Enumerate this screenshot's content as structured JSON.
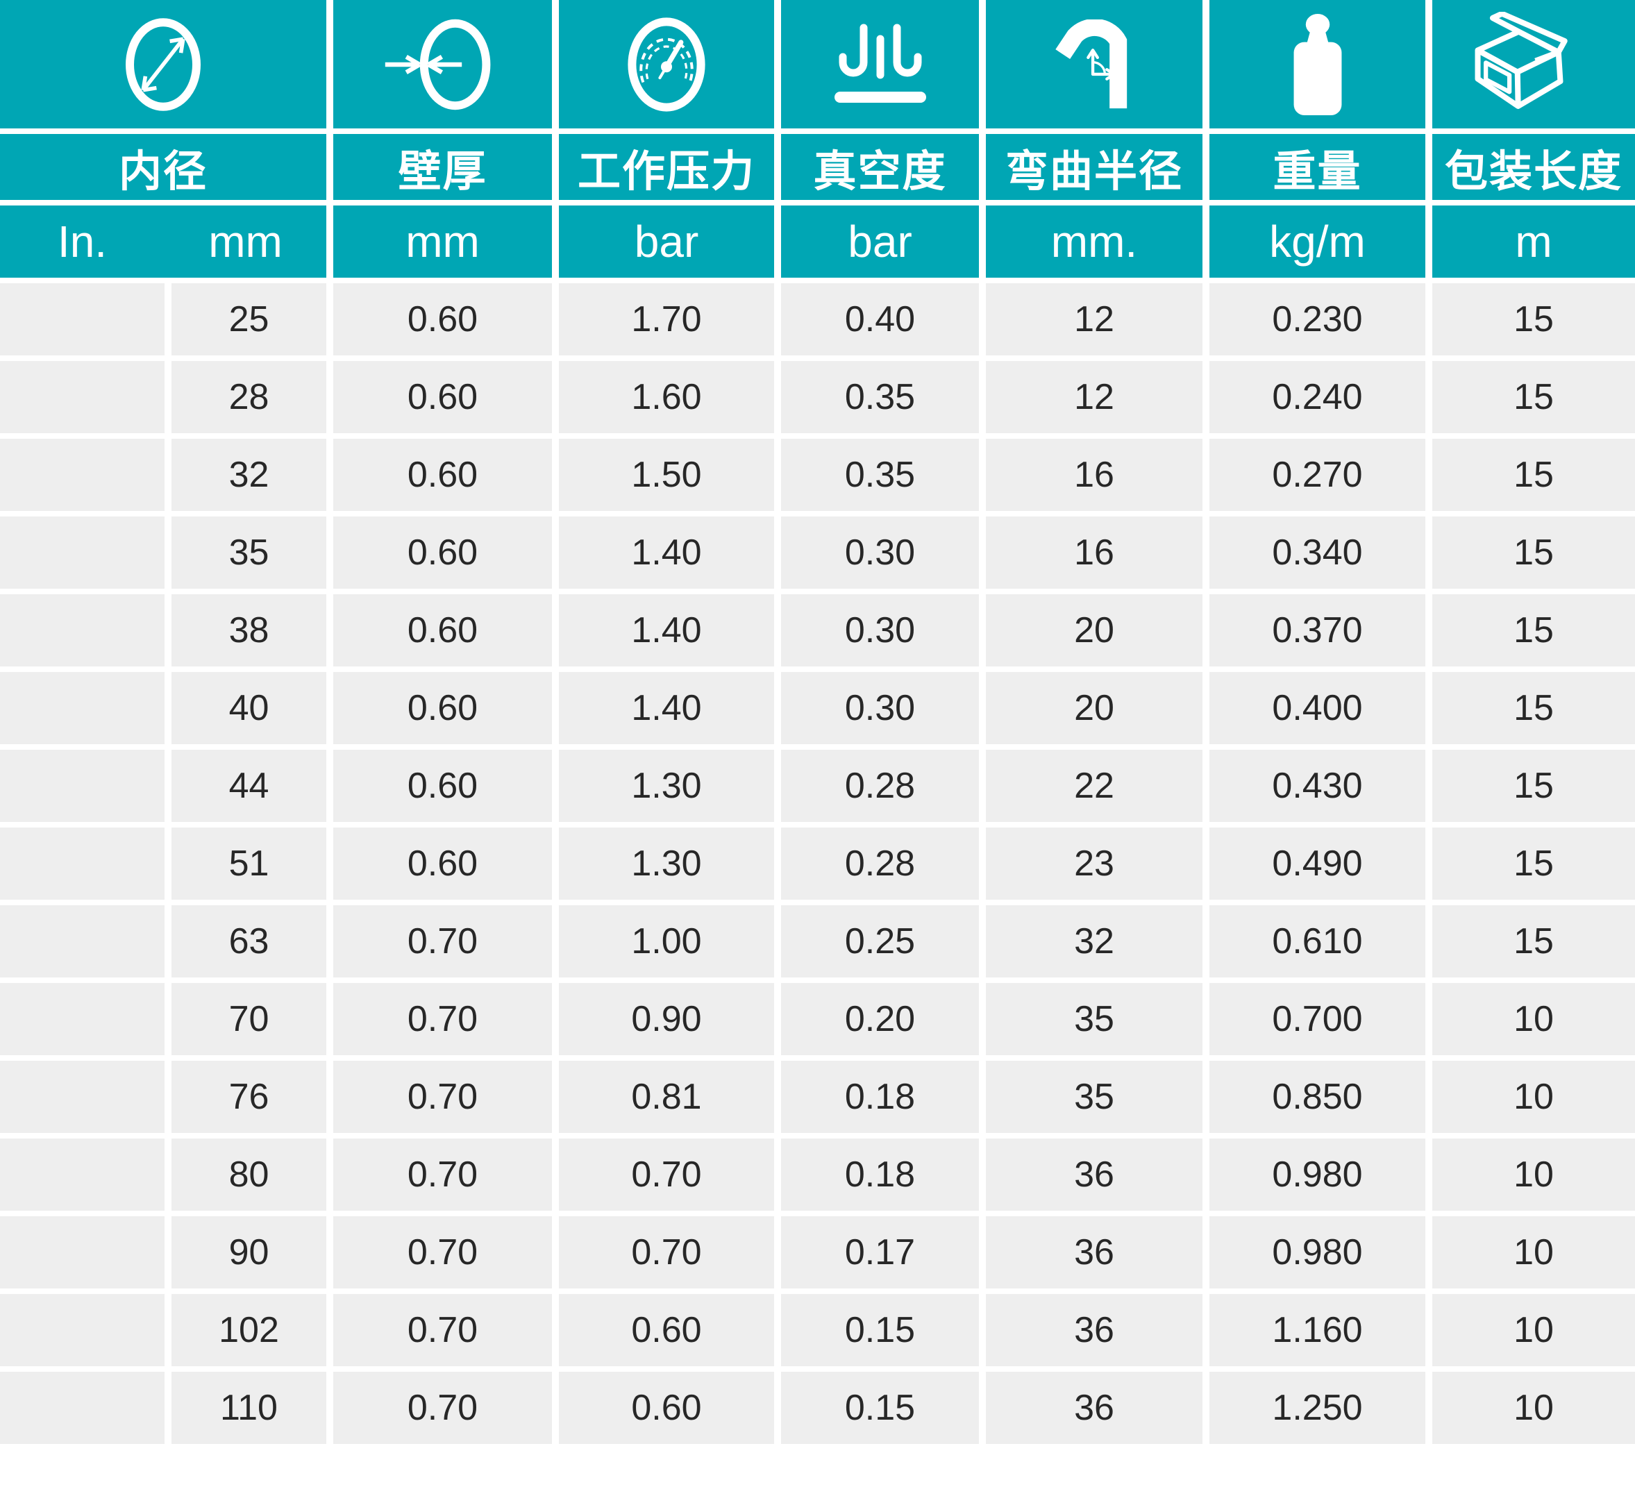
{
  "table": {
    "columns": [
      {
        "id": "inner-diameter",
        "icon": "diameter-icon",
        "label": "内径",
        "units": [
          "In.",
          "mm"
        ]
      },
      {
        "id": "wall-thickness",
        "icon": "wall-thickness-icon",
        "label": "壁厚",
        "unit": "mm"
      },
      {
        "id": "working-pressure",
        "icon": "pressure-gauge-icon",
        "label": "工作压力",
        "unit": "bar"
      },
      {
        "id": "vacuum",
        "icon": "vacuum-icon",
        "label": "真空度",
        "unit": "bar"
      },
      {
        "id": "bend-radius",
        "icon": "bend-radius-icon",
        "label": "弯曲半径",
        "unit": "mm."
      },
      {
        "id": "weight",
        "icon": "weight-icon",
        "label": "重量",
        "unit": "kg/m"
      },
      {
        "id": "packing-length",
        "icon": "box-icon",
        "label": "包装长度",
        "unit": "m"
      }
    ],
    "rows": [
      [
        "",
        "25",
        "0.60",
        "1.70",
        "0.40",
        "12",
        "0.230",
        "15"
      ],
      [
        "",
        "28",
        "0.60",
        "1.60",
        "0.35",
        "12",
        "0.240",
        "15"
      ],
      [
        "",
        "32",
        "0.60",
        "1.50",
        "0.35",
        "16",
        "0.270",
        "15"
      ],
      [
        "",
        "35",
        "0.60",
        "1.40",
        "0.30",
        "16",
        "0.340",
        "15"
      ],
      [
        "",
        "38",
        "0.60",
        "1.40",
        "0.30",
        "20",
        "0.370",
        "15"
      ],
      [
        "",
        "40",
        "0.60",
        "1.40",
        "0.30",
        "20",
        "0.400",
        "15"
      ],
      [
        "",
        "44",
        "0.60",
        "1.30",
        "0.28",
        "22",
        "0.430",
        "15"
      ],
      [
        "",
        "51",
        "0.60",
        "1.30",
        "0.28",
        "23",
        "0.490",
        "15"
      ],
      [
        "",
        "63",
        "0.70",
        "1.00",
        "0.25",
        "32",
        "0.610",
        "15"
      ],
      [
        "",
        "70",
        "0.70",
        "0.90",
        "0.20",
        "35",
        "0.700",
        "10"
      ],
      [
        "",
        "76",
        "0.70",
        "0.81",
        "0.18",
        "35",
        "0.850",
        "10"
      ],
      [
        "",
        "80",
        "0.70",
        "0.70",
        "0.18",
        "36",
        "0.980",
        "10"
      ],
      [
        "",
        "90",
        "0.70",
        "0.70",
        "0.17",
        "36",
        "0.980",
        "10"
      ],
      [
        "",
        "102",
        "0.70",
        "0.60",
        "0.15",
        "36",
        "1.160",
        "10"
      ],
      [
        "",
        "110",
        "0.70",
        "0.60",
        "0.15",
        "36",
        "1.250",
        "10"
      ]
    ]
  },
  "colors": {
    "teal": "#00A6B4",
    "cell_gray": "#EEEEEE",
    "text_dark": "#272727",
    "background": "#FFFFFF"
  }
}
